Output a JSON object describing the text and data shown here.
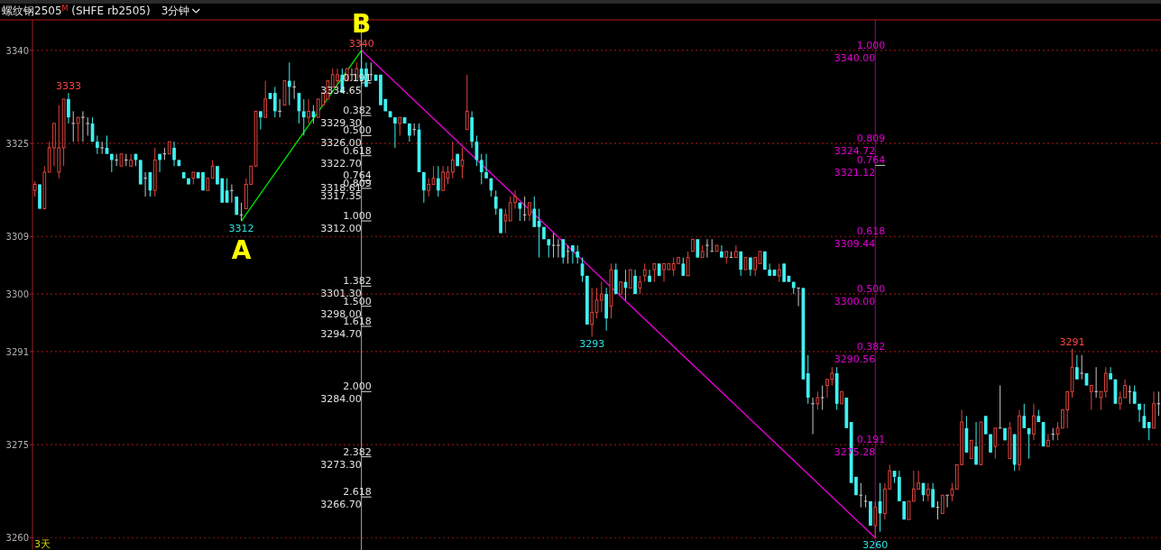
{
  "chart_data": {
    "type": "candlestick",
    "title": "螺纹钢2505$^{M}$ (SHFE rb2505)",
    "subtitle": "3分钟",
    "categories": [
      null,
      null,
      null,
      null,
      null,
      null,
      null,
      null,
      null,
      null,
      null,
      null,
      null,
      null,
      null,
      null,
      null,
      null,
      null,
      null,
      null,
      null,
      null,
      null,
      null,
      null,
      null,
      null,
      null,
      null,
      null,
      null,
      null,
      null,
      null,
      null,
      null,
      null,
      null,
      null,
      null,
      null,
      null,
      null,
      null,
      null,
      null,
      null,
      null,
      null,
      null,
      null,
      null,
      null,
      null,
      null,
      null,
      null,
      null,
      null,
      null,
      null,
      null,
      null,
      null,
      null,
      null,
      null,
      null,
      null,
      null,
      null,
      null,
      null,
      null,
      null,
      null,
      null,
      null,
      null,
      null,
      null,
      null,
      null,
      null,
      null,
      null,
      null,
      null,
      null,
      null,
      null,
      null,
      null,
      null,
      null,
      null,
      null,
      null,
      null,
      null,
      null,
      null,
      null,
      null,
      null,
      null,
      null,
      null,
      null,
      null,
      null,
      null,
      null,
      null,
      null,
      null,
      null,
      null,
      null,
      null,
      null,
      null,
      null,
      null,
      null,
      null,
      null,
      null,
      null,
      null,
      null,
      null,
      null,
      null,
      null,
      null,
      null,
      null,
      null,
      null,
      null,
      null,
      null,
      null,
      null,
      null,
      null,
      null,
      null,
      null,
      null,
      null,
      null,
      null,
      null,
      null,
      null,
      null,
      null,
      null,
      null,
      null,
      null,
      null,
      null,
      null,
      null,
      null,
      null,
      null,
      null,
      null,
      null,
      null,
      null,
      null,
      null,
      null,
      null,
      null,
      null,
      null,
      null,
      null,
      null,
      null,
      null,
      null,
      null,
      null,
      null,
      null,
      null,
      null,
      null,
      null,
      null,
      null,
      null,
      null,
      null,
      null,
      null,
      null,
      null,
      null,
      null,
      null,
      null,
      null,
      null,
      null,
      null,
      null,
      null,
      null,
      null,
      null,
      null,
      null,
      null,
      null,
      null,
      null,
      null,
      null,
      null,
      null,
      null,
      null,
      null,
      null,
      null,
      null
    ],
    "ohlc": [
      [
        3317,
        3318.5,
        3316,
        3318
      ],
      [
        3318,
        3318,
        3314,
        3314
      ],
      [
        3314,
        3321,
        3314,
        3320
      ],
      [
        3320,
        3325,
        3320,
        3324
      ],
      [
        3324,
        3328,
        3321,
        3328
      ],
      [
        3320,
        3331,
        3319,
        3324
      ],
      [
        3324,
        3332,
        3321,
        3332
      ],
      [
        3332,
        3333,
        3328,
        3329
      ],
      [
        3328,
        3330,
        3325,
        3328
      ],
      [
        3328,
        3329,
        3325,
        3329
      ],
      [
        3329,
        3330,
        3325,
        3329
      ],
      [
        3328,
        3329,
        3326,
        3328
      ],
      [
        3328,
        3329,
        3325,
        3325
      ],
      [
        3325,
        3326,
        3323,
        3324
      ],
      [
        3324,
        3325,
        3323,
        3324
      ],
      [
        3324,
        3326,
        3323,
        3323
      ],
      [
        3323,
        3323,
        3320,
        3322
      ],
      [
        3322,
        3323,
        3321,
        3322
      ],
      [
        3321,
        3323,
        3321,
        3323
      ],
      [
        3322,
        3323,
        3321,
        3322
      ],
      [
        3321,
        3323,
        3321,
        3322
      ],
      [
        3323,
        3323,
        3321,
        3322
      ],
      [
        3322,
        3322,
        3318,
        3318
      ],
      [
        3319,
        3320,
        3316,
        3319
      ],
      [
        3320,
        3320,
        3316,
        3317
      ],
      [
        3317,
        3324,
        3316,
        3322
      ],
      [
        3323,
        3323,
        3320,
        3322
      ],
      [
        3323,
        3324,
        3322,
        3323
      ],
      [
        3323,
        3325,
        3323,
        3325
      ],
      [
        3324,
        3325,
        3321,
        3322
      ],
      [
        3322,
        3322,
        3321,
        3321
      ],
      [
        3320,
        3320,
        3319,
        3319
      ],
      [
        3319,
        3319,
        3318,
        3318
      ],
      [
        3319,
        3320,
        3318,
        3320
      ],
      [
        3320,
        3320,
        3319,
        3319
      ],
      [
        3320,
        3320,
        3317,
        3317
      ],
      [
        3317,
        3319,
        3317,
        3319
      ],
      [
        3319,
        3322,
        3319,
        3321
      ],
      [
        3321,
        3321,
        3318,
        3318
      ],
      [
        3319,
        3319,
        3315,
        3315
      ],
      [
        3317,
        3319,
        3315,
        3315
      ],
      [
        3317,
        3318,
        3315,
        3317
      ],
      [
        3316,
        3316,
        3313,
        3313
      ],
      [
        3313,
        3315,
        3312,
        3313
      ],
      [
        3314,
        3319,
        3314,
        3318
      ],
      [
        3318,
        3321,
        3318,
        3321
      ],
      [
        3321,
        3330,
        3321,
        3330
      ],
      [
        3330,
        3330,
        3327,
        3329
      ],
      [
        3329,
        3335,
        3329,
        3332
      ],
      [
        3333,
        3333,
        3332,
        3332
      ],
      [
        3333,
        3334,
        3329,
        3330
      ],
      [
        3330,
        3332,
        3329,
        3330
      ],
      [
        3331,
        3335,
        3331,
        3335
      ],
      [
        3335,
        3338,
        3331,
        3334
      ],
      [
        3334,
        3335,
        3332,
        3334
      ],
      [
        3333,
        3333,
        3328,
        3330
      ],
      [
        3330,
        3332,
        3326,
        3329
      ],
      [
        3329,
        3332,
        3328,
        3330
      ],
      [
        3330,
        3331,
        3328,
        3329
      ],
      [
        3329,
        3332,
        3329,
        3332
      ],
      [
        3331,
        3333,
        3331,
        3333
      ],
      [
        3332,
        3335,
        3332,
        3335
      ],
      [
        3334,
        3337,
        3334,
        3336
      ],
      [
        3335,
        3337,
        3334,
        3336
      ],
      [
        3336,
        3337,
        3333,
        3333
      ],
      [
        3335,
        3337,
        3335,
        3337
      ],
      [
        3336,
        3337,
        3335,
        3336
      ],
      [
        3335,
        3338,
        3335,
        3337
      ],
      [
        3337,
        3340,
        3334,
        3335
      ],
      [
        3337,
        3338,
        3334,
        3334
      ],
      [
        3336,
        3338,
        3335,
        3336
      ],
      [
        3336,
        3336,
        3335,
        3335
      ],
      [
        3336,
        3336,
        3331,
        3331
      ],
      [
        3332,
        3332,
        3330,
        3330
      ],
      [
        3330,
        3330,
        3329,
        3329
      ],
      [
        3329,
        3329,
        3324,
        3328
      ],
      [
        3328,
        3329,
        3326,
        3329
      ],
      [
        3329,
        3329,
        3328,
        3328
      ],
      [
        3328,
        3328,
        3325,
        3326
      ],
      [
        3327,
        3328,
        3326,
        3327
      ],
      [
        3327,
        3328,
        3320,
        3320
      ],
      [
        3320,
        3320,
        3315,
        3317
      ],
      [
        3317,
        3319,
        3316,
        3318
      ],
      [
        3318,
        3321,
        3318,
        3319
      ],
      [
        3319,
        3321,
        3316,
        3317
      ],
      [
        3317,
        3321,
        3317,
        3320
      ],
      [
        3319,
        3321,
        3318,
        3320
      ],
      [
        3320,
        3325,
        3319,
        3322
      ],
      [
        3323,
        3323,
        3321,
        3321
      ],
      [
        3321,
        3324,
        3319,
        3322
      ],
      [
        3327,
        3336,
        3327,
        3330
      ],
      [
        3329,
        3330,
        3324,
        3325
      ],
      [
        3325,
        3326,
        3321,
        3322
      ],
      [
        3322,
        3323,
        3318,
        3320
      ],
      [
        3320,
        3323,
        3319,
        3319
      ],
      [
        3319,
        3319,
        3316,
        3317
      ],
      [
        3316,
        3317,
        3313,
        3314
      ],
      [
        3314,
        3314,
        3310,
        3310
      ],
      [
        3312,
        3314,
        3310,
        3313
      ],
      [
        3312,
        3316,
        3312,
        3315
      ],
      [
        3315,
        3317,
        3314,
        3316
      ],
      [
        3315,
        3315,
        3312,
        3314
      ],
      [
        3313,
        3316,
        3312,
        3313
      ],
      [
        3313,
        3315,
        3312,
        3315
      ],
      [
        3314,
        3316,
        3311,
        3311
      ],
      [
        3312,
        3314,
        3306,
        3311
      ],
      [
        3311,
        3311,
        3309,
        3309
      ],
      [
        3309,
        3309,
        3306,
        3308
      ],
      [
        3308,
        3310,
        3306,
        3308
      ],
      [
        3308,
        3309,
        3306,
        3308
      ],
      [
        3309,
        3309,
        3305,
        3306
      ],
      [
        3307,
        3308,
        3305,
        3307
      ],
      [
        3308,
        3308,
        3305,
        3307
      ],
      [
        3307,
        3308,
        3305,
        3306
      ],
      [
        3305,
        3306,
        3302,
        3303
      ],
      [
        3303,
        3303,
        3295,
        3295
      ],
      [
        3295,
        3301,
        3293,
        3297
      ],
      [
        3297,
        3301,
        3296,
        3299
      ],
      [
        3299,
        3302,
        3297,
        3300
      ],
      [
        3300,
        3301,
        3294,
        3296
      ],
      [
        3298,
        3305,
        3296,
        3304
      ],
      [
        3304,
        3305,
        3300,
        3300
      ],
      [
        3300,
        3302,
        3300,
        3302
      ],
      [
        3302,
        3304,
        3299,
        3301
      ],
      [
        3301,
        3304,
        3301,
        3304
      ],
      [
        3303,
        3304,
        3300,
        3300
      ],
      [
        3301,
        3303,
        3300,
        3302
      ],
      [
        3303,
        3305,
        3302,
        3304
      ],
      [
        3303,
        3304,
        3302,
        3302
      ],
      [
        3304,
        3305,
        3302,
        3305
      ],
      [
        3305,
        3305,
        3303,
        3303
      ],
      [
        3304,
        3305,
        3302,
        3305
      ],
      [
        3304,
        3305,
        3304,
        3305
      ],
      [
        3304,
        3306,
        3303,
        3305
      ],
      [
        3305,
        3306,
        3305,
        3306
      ],
      [
        3305,
        3306,
        3303,
        3303
      ],
      [
        3303,
        3307,
        3303,
        3306
      ],
      [
        3307,
        3309,
        3307,
        3309
      ],
      [
        3309,
        3309,
        3306,
        3306
      ],
      [
        3306,
        3308,
        3306,
        3307
      ],
      [
        3308,
        3309,
        3306,
        3308
      ],
      [
        3307,
        3309,
        3307,
        3307
      ],
      [
        3307,
        3308,
        3307,
        3308
      ],
      [
        3307,
        3308,
        3306,
        3306
      ],
      [
        3306,
        3307,
        3305,
        3307
      ],
      [
        3306,
        3307,
        3306,
        3306
      ],
      [
        3306,
        3308,
        3306,
        3307
      ],
      [
        3307,
        3307,
        3303,
        3304
      ],
      [
        3304,
        3306,
        3304,
        3306
      ],
      [
        3306,
        3306,
        3303,
        3304
      ],
      [
        3304,
        3306,
        3303,
        3306
      ],
      [
        3305,
        3307,
        3305,
        3307
      ],
      [
        3307,
        3307,
        3304,
        3304
      ],
      [
        3304,
        3305,
        3303,
        3303
      ],
      [
        3304,
        3304,
        3303,
        3303
      ],
      [
        3303,
        3305,
        3302,
        3304
      ],
      [
        3305,
        3305,
        3302,
        3302
      ],
      [
        3303,
        3303,
        3302,
        3302
      ],
      [
        3302,
        3302,
        3300,
        3301
      ],
      [
        3301,
        3301,
        3298,
        3301
      ],
      [
        3301,
        3301,
        3286,
        3286
      ],
      [
        3287,
        3290,
        3282,
        3283
      ],
      [
        3282,
        3283,
        3277,
        3282
      ],
      [
        3282,
        3284,
        3281,
        3283
      ],
      [
        3283,
        3285,
        3281,
        3283
      ],
      [
        3285,
        3286,
        3283,
        3286
      ],
      [
        3286,
        3288,
        3285,
        3287
      ],
      [
        3287,
        3288,
        3281,
        3282
      ],
      [
        3282,
        3284,
        3282,
        3284
      ],
      [
        3283,
        3283,
        3278,
        3278
      ],
      [
        3279,
        3279,
        3269,
        3269
      ],
      [
        3270,
        3270,
        3267,
        3267
      ],
      [
        3267,
        3269,
        3265,
        3267
      ],
      [
        3266,
        3267,
        3265,
        3266
      ],
      [
        3266,
        3266,
        3262,
        3262
      ],
      [
        3262,
        3266,
        3260,
        3265
      ],
      [
        3266,
        3269,
        3261,
        3264
      ],
      [
        3264,
        3269,
        3263,
        3268
      ],
      [
        3268,
        3272,
        3268,
        3271
      ],
      [
        3271,
        3271,
        3269,
        3270
      ],
      [
        3270,
        3271,
        3266,
        3266
      ],
      [
        3266,
        3266,
        3263,
        3263
      ],
      [
        3263,
        3266,
        3263,
        3266
      ],
      [
        3266,
        3271,
        3266,
        3268
      ],
      [
        3268,
        3271,
        3268,
        3269
      ],
      [
        3269,
        3269,
        3266,
        3267
      ],
      [
        3267,
        3269,
        3266,
        3268
      ],
      [
        3268,
        3269,
        3265,
        3265
      ],
      [
        3265,
        3266,
        3263,
        3265
      ],
      [
        3264,
        3267,
        3264,
        3267
      ],
      [
        3267,
        3267,
        3265,
        3267
      ],
      [
        3267,
        3269,
        3266,
        3268
      ],
      [
        3268,
        3272,
        3268,
        3272
      ],
      [
        3272,
        3281,
        3272,
        3279
      ],
      [
        3278,
        3280,
        3274,
        3274
      ],
      [
        3273,
        3276,
        3273,
        3276
      ],
      [
        3275,
        3279,
        3272,
        3272
      ],
      [
        3272,
        3279,
        3272,
        3279
      ],
      [
        3280,
        3280,
        3277,
        3277
      ],
      [
        3277,
        3277,
        3274,
        3274
      ],
      [
        3275,
        3278,
        3273,
        3278
      ],
      [
        3278,
        3285,
        3278,
        3278
      ],
      [
        3278,
        3278,
        3276,
        3276
      ],
      [
        3273,
        3279,
        3273,
        3278
      ],
      [
        3277,
        3277,
        3271,
        3272
      ],
      [
        3272,
        3281,
        3271,
        3280
      ],
      [
        3280,
        3282,
        3278,
        3278
      ],
      [
        3278,
        3278,
        3273,
        3277
      ],
      [
        3277,
        3282,
        3276,
        3280
      ],
      [
        3280,
        3281,
        3279,
        3279
      ],
      [
        3279,
        3279,
        3275,
        3275
      ],
      [
        3275,
        3277,
        3275,
        3276
      ],
      [
        3277,
        3278,
        3276,
        3277
      ],
      [
        3277,
        3279,
        3276,
        3278
      ],
      [
        3278,
        3281,
        3278,
        3281
      ],
      [
        3281,
        3284,
        3278,
        3284
      ],
      [
        3284,
        3291,
        3283,
        3288
      ],
      [
        3288,
        3290,
        3286,
        3286
      ],
      [
        3287,
        3290,
        3286,
        3287
      ],
      [
        3287,
        3287,
        3285,
        3285
      ],
      [
        3284,
        3285,
        3281,
        3285
      ],
      [
        3284,
        3288,
        3283,
        3284
      ],
      [
        3283,
        3284,
        3281,
        3284
      ],
      [
        3284,
        3288,
        3283,
        3287
      ],
      [
        3287,
        3288,
        3286,
        3286
      ],
      [
        3286,
        3286,
        3282,
        3282
      ],
      [
        3282,
        3284,
        3281,
        3283
      ],
      [
        3283,
        3286,
        3283,
        3285
      ],
      [
        3284,
        3285,
        3282,
        3284
      ],
      [
        3284,
        3285,
        3282,
        3282
      ],
      [
        3282,
        3282,
        3279,
        3281
      ],
      [
        3280,
        3282,
        3278,
        3278
      ],
      [
        3279,
        3279,
        3276,
        3278
      ],
      [
        3278,
        3284,
        3278,
        3282
      ],
      [
        3282,
        3284,
        3280,
        3282
      ]
    ],
    "colors": [
      "#e0443c",
      "#40f0f0",
      "#e0443c",
      "#e0443c",
      "#e0443c",
      "#e0443c",
      "#e0443c",
      "#40f0f0",
      "#c8c8c8",
      "#e0443c",
      "#c8c8c8",
      "#c8c8c8",
      "#40f0f0",
      "#40f0f0",
      "#c8c8c8",
      "#40f0f0",
      "#40f0f0",
      "#c8c8c8",
      "#e0443c",
      "#c8c8c8",
      "#e0443c",
      "#40f0f0",
      "#40f0f0",
      "#c8c8c8",
      "#40f0f0",
      "#e0443c",
      "#40f0f0",
      "#c8c8c8",
      "#e0443c",
      "#40f0f0",
      "#40f0f0",
      "#40f0f0",
      "#40f0f0",
      "#e0443c",
      "#40f0f0",
      "#40f0f0",
      "#e0443c",
      "#e0443c",
      "#40f0f0",
      "#40f0f0",
      "#40f0f0",
      "#c8c8c8",
      "#40f0f0",
      "#c8c8c8",
      "#e0443c",
      "#e0443c",
      "#e0443c",
      "#40f0f0",
      "#e0443c",
      "#40f0f0",
      "#40f0f0",
      "#c8c8c8",
      "#e0443c",
      "#40f0f0",
      "#c8c8c8",
      "#40f0f0",
      "#40f0f0",
      "#e0443c",
      "#40f0f0",
      "#e0443c",
      "#e0443c",
      "#e0443c",
      "#e0443c",
      "#e0443c",
      "#40f0f0",
      "#e0443c",
      "#c8c8c8",
      "#e0443c",
      "#40f0f0",
      "#40f0f0",
      "#c8c8c8",
      "#40f0f0",
      "#40f0f0",
      "#40f0f0",
      "#40f0f0",
      "#40f0f0",
      "#e0443c",
      "#40f0f0",
      "#40f0f0",
      "#c8c8c8",
      "#40f0f0",
      "#40f0f0",
      "#e0443c",
      "#e0443c",
      "#40f0f0",
      "#e0443c",
      "#e0443c",
      "#e0443c",
      "#40f0f0",
      "#e0443c",
      "#e0443c",
      "#40f0f0",
      "#40f0f0",
      "#40f0f0",
      "#40f0f0",
      "#40f0f0",
      "#40f0f0",
      "#40f0f0",
      "#e0443c",
      "#e0443c",
      "#e0443c",
      "#40f0f0",
      "#c8c8c8",
      "#e0443c",
      "#40f0f0",
      "#40f0f0",
      "#40f0f0",
      "#40f0f0",
      "#c8c8c8",
      "#c8c8c8",
      "#40f0f0",
      "#c8c8c8",
      "#40f0f0",
      "#40f0f0",
      "#40f0f0",
      "#40f0f0",
      "#e0443c",
      "#e0443c",
      "#e0443c",
      "#40f0f0",
      "#e0443c",
      "#40f0f0",
      "#e0443c",
      "#40f0f0",
      "#e0443c",
      "#40f0f0",
      "#e0443c",
      "#e0443c",
      "#40f0f0",
      "#e0443c",
      "#40f0f0",
      "#e0443c",
      "#e0443c",
      "#e0443c",
      "#e0443c",
      "#40f0f0",
      "#e0443c",
      "#e0443c",
      "#40f0f0",
      "#e0443c",
      "#c8c8c8",
      "#c8c8c8",
      "#e0443c",
      "#40f0f0",
      "#e0443c",
      "#c8c8c8",
      "#e0443c",
      "#40f0f0",
      "#e0443c",
      "#40f0f0",
      "#e0443c",
      "#e0443c",
      "#40f0f0",
      "#40f0f0",
      "#40f0f0",
      "#e0443c",
      "#40f0f0",
      "#40f0f0",
      "#40f0f0",
      "#c8c8c8",
      "#40f0f0",
      "#40f0f0",
      "#c8c8c8",
      "#e0443c",
      "#c8c8c8",
      "#e0443c",
      "#e0443c",
      "#40f0f0",
      "#e0443c",
      "#40f0f0",
      "#40f0f0",
      "#40f0f0",
      "#c8c8c8",
      "#c8c8c8",
      "#40f0f0",
      "#e0443c",
      "#40f0f0",
      "#e0443c",
      "#e0443c",
      "#40f0f0",
      "#40f0f0",
      "#40f0f0",
      "#e0443c",
      "#e0443c",
      "#e0443c",
      "#40f0f0",
      "#e0443c",
      "#40f0f0",
      "#c8c8c8",
      "#e0443c",
      "#c8c8c8",
      "#e0443c",
      "#e0443c",
      "#e0443c",
      "#40f0f0",
      "#e0443c",
      "#40f0f0",
      "#e0443c",
      "#40f0f0",
      "#40f0f0",
      "#e0443c",
      "#c8c8c8",
      "#40f0f0",
      "#e0443c",
      "#40f0f0",
      "#e0443c",
      "#40f0f0",
      "#40f0f0",
      "#e0443c",
      "#40f0f0",
      "#40f0f0",
      "#e0443c",
      "#c8c8c8",
      "#e0443c",
      "#e0443c",
      "#e0443c",
      "#e0443c",
      "#40f0f0",
      "#c8c8c8",
      "#40f0f0",
      "#e0443c",
      "#c8c8c8",
      "#e0443c",
      "#e0443c",
      "#40f0f0",
      "#40f0f0",
      "#e0443c",
      "#e0443c",
      "#c8c8c8",
      "#40f0f0",
      "#40f0f0",
      "#40f0f0",
      "#40f0f0",
      "#e0443c",
      "#c8c8c8"
    ],
    "value_labels": [
      null,
      null,
      null,
      null,
      null,
      null,
      null,
      "3333",
      null,
      null,
      null,
      null,
      null,
      null,
      null,
      null,
      null,
      null,
      null,
      null,
      null,
      null,
      null,
      null,
      null,
      null,
      null,
      null,
      null,
      null,
      null,
      null,
      null,
      null,
      null,
      null,
      null,
      null,
      null,
      null,
      null,
      null,
      null,
      "3312",
      null,
      null,
      null,
      null,
      null,
      null,
      null,
      null,
      null,
      null,
      null,
      null,
      null,
      null,
      null,
      null,
      null,
      null,
      null,
      null,
      null,
      null,
      null,
      null,
      "3340",
      null,
      null,
      null,
      null,
      null,
      null,
      null,
      null,
      null,
      null,
      null,
      null,
      null,
      null,
      null,
      null,
      null,
      null,
      null,
      null,
      null,
      null,
      null,
      null,
      null,
      null,
      null,
      null,
      null,
      null,
      null,
      null,
      null,
      null,
      null,
      null,
      null,
      null,
      null,
      null,
      null,
      null,
      null,
      null,
      null,
      null,
      null,
      "3293",
      null,
      null,
      null,
      null,
      null,
      null,
      null,
      null,
      null,
      null,
      null,
      null,
      null,
      null,
      null,
      null,
      null,
      null,
      null,
      null,
      null,
      null,
      null,
      null,
      null,
      null,
      null,
      null,
      null,
      null,
      null,
      null,
      null,
      null,
      null,
      null,
      null,
      null,
      null,
      null,
      null,
      null,
      null,
      null,
      null,
      null,
      null,
      null,
      null,
      null,
      null,
      null,
      null,
      null,
      null,
      null,
      null,
      null,
      "3260",
      null,
      null,
      null,
      null,
      null,
      null,
      null,
      null,
      null,
      null,
      null,
      null,
      null,
      null,
      null,
      null,
      null,
      null,
      null,
      null,
      null,
      null,
      null,
      null,
      null,
      null,
      null,
      null,
      null,
      null,
      null,
      null,
      null,
      null,
      null,
      null,
      null,
      null,
      null,
      null,
      "3291",
      null,
      null,
      null,
      null,
      null,
      null,
      null,
      null,
      null,
      null,
      null,
      null,
      null,
      null,
      null,
      null,
      null,
      null
    ],
    "series": [
      {
        "type": "line",
        "color": "#00e000",
        "values": [
          null,
          null,
          null,
          null,
          null,
          null,
          null,
          null,
          null,
          null,
          null,
          null,
          null,
          null,
          null,
          null,
          null,
          null,
          null,
          null,
          null,
          null,
          null,
          null,
          null,
          null,
          null,
          null,
          null,
          null,
          null,
          null,
          null,
          null,
          null,
          null,
          null,
          null,
          null,
          null,
          null,
          null,
          null,
          3312,
          null,
          null,
          null,
          null,
          null,
          null,
          null,
          null,
          null,
          null,
          null,
          null,
          null,
          null,
          null,
          null,
          null,
          null,
          null,
          null,
          null,
          null,
          null,
          null,
          3340,
          null,
          null,
          null,
          null,
          null,
          null,
          null,
          null,
          null,
          null,
          null,
          null,
          null,
          null,
          null,
          null,
          null,
          null,
          null,
          null,
          null,
          null,
          null,
          null,
          null,
          null,
          null,
          null,
          null,
          null,
          null,
          null,
          null,
          null,
          null,
          null,
          null,
          null,
          null,
          null,
          null,
          null,
          null,
          null,
          null,
          null,
          null,
          null,
          null,
          null,
          null,
          null,
          null,
          null,
          null,
          null,
          null,
          null,
          null,
          null,
          null,
          null,
          null,
          null,
          null,
          null,
          null,
          null,
          null,
          null,
          null,
          null,
          null,
          null,
          null,
          null,
          null,
          null,
          null,
          null,
          null,
          null,
          null,
          null,
          null,
          null,
          null,
          null,
          null,
          null,
          null,
          null,
          null,
          null,
          null,
          null,
          null,
          null,
          null,
          null,
          null,
          null,
          null,
          null,
          null,
          null,
          null,
          null,
          null,
          null,
          null,
          null,
          null,
          null,
          null,
          null,
          null,
          null,
          null,
          null,
          null,
          null,
          null,
          null,
          null,
          null,
          null,
          null,
          null,
          null,
          null,
          null,
          null,
          null,
          null,
          null,
          null,
          null,
          null,
          null,
          null,
          null,
          null,
          null,
          null,
          null,
          null,
          null,
          null,
          null,
          null,
          null,
          null,
          null,
          null,
          null,
          null,
          null,
          null,
          null,
          null,
          null,
          null,
          null,
          null,
          null
        ]
      },
      {
        "type": "line",
        "color": "#e000d0",
        "values": [
          null,
          null,
          null,
          null,
          null,
          null,
          null,
          null,
          null,
          null,
          null,
          null,
          null,
          null,
          null,
          null,
          null,
          null,
          null,
          null,
          null,
          null,
          null,
          null,
          null,
          null,
          null,
          null,
          null,
          null,
          null,
          null,
          null,
          null,
          null,
          null,
          null,
          null,
          null,
          null,
          null,
          null,
          null,
          null,
          null,
          null,
          null,
          null,
          null,
          null,
          null,
          null,
          null,
          null,
          null,
          null,
          null,
          null,
          null,
          null,
          null,
          null,
          null,
          null,
          null,
          null,
          null,
          null,
          3340,
          null,
          null,
          null,
          null,
          null,
          null,
          null,
          null,
          null,
          null,
          null,
          null,
          null,
          null,
          null,
          null,
          null,
          null,
          null,
          null,
          null,
          null,
          null,
          null,
          null,
          null,
          null,
          null,
          null,
          null,
          null,
          null,
          null,
          null,
          null,
          null,
          null,
          null,
          null,
          null,
          null,
          null,
          null,
          null,
          null,
          null,
          null,
          null,
          null,
          null,
          null,
          null,
          null,
          null,
          null,
          null,
          null,
          null,
          null,
          null,
          null,
          null,
          null,
          null,
          null,
          null,
          null,
          null,
          null,
          null,
          null,
          null,
          null,
          null,
          null,
          null,
          null,
          null,
          null,
          null,
          null,
          null,
          null,
          null,
          null,
          null,
          null,
          null,
          null,
          null,
          null,
          null,
          null,
          null,
          null,
          null,
          null,
          null,
          null,
          null,
          null,
          null,
          null,
          null,
          null,
          null,
          3260,
          null,
          null,
          null,
          null,
          null,
          null,
          null,
          null,
          null,
          null,
          null,
          null,
          null,
          null,
          null,
          null,
          null,
          null,
          null,
          null,
          null,
          null,
          null,
          null,
          null,
          null,
          null,
          null,
          null,
          null,
          null,
          null,
          null,
          null,
          null,
          null,
          null,
          null,
          null,
          null,
          null,
          null,
          null,
          null,
          null,
          null,
          null,
          null,
          null,
          null,
          null,
          null,
          null,
          null,
          null,
          null,
          null,
          null,
          null
        ]
      }
    ],
    "ylim": [
      3258,
      3345
    ],
    "yticks": [
      {
        "value": 3340,
        "label": "3340"
      },
      {
        "value": 3324.72,
        "label": "3325"
      },
      {
        "value": 3309.44,
        "label": "3309"
      },
      {
        "value": 3300,
        "label": "3300"
      },
      {
        "value": 3290.56,
        "label": "3291"
      },
      {
        "value": 3275.28,
        "label": "3275"
      },
      {
        "value": 3260,
        "label": "3260"
      }
    ],
    "tick_labels": "y",
    "grid": "y",
    "ref_lines": [
      {
        "axis": "y",
        "value": 3334.65,
        "label": "0.191\n3334.65",
        "color": "#e0e0e0"
      },
      {
        "axis": "y",
        "value": 3329.3,
        "label": "0.382\n3329.30",
        "color": "#e0e0e0"
      },
      {
        "axis": "y",
        "value": 3326,
        "label": "0.500\n3326.00",
        "color": "#e0e0e0"
      },
      {
        "axis": "y",
        "value": 3322.7,
        "label": "0.618\n3322.70",
        "color": "#e0e0e0"
      },
      {
        "axis": "y",
        "value": 3318.61,
        "label": "0.764\n3318.61",
        "color": "#e0e0e0"
      },
      {
        "axis": "y",
        "value": 3317.35,
        "label": "0.809\n3317.35",
        "color": "#e0e0e0"
      },
      {
        "axis": "y",
        "value": 3312,
        "label": "1.000\n3312.00",
        "color": "#e0e0e0"
      },
      {
        "axis": "y",
        "value": 3301.3,
        "label": "1.382\n3301.30",
        "color": "#e0e0e0"
      },
      {
        "axis": "y",
        "value": 3298,
        "label": "1.500\n3298.00",
        "color": "#e0e0e0"
      },
      {
        "axis": "y",
        "value": 3294.7,
        "label": "1.618\n3294.70",
        "color": "#e0e0e0"
      },
      {
        "axis": "y",
        "value": 3284,
        "label": "2.000\n3284.00",
        "color": "#e0e0e0"
      },
      {
        "axis": "y",
        "value": 3273.3,
        "label": "2.382\n3273.30",
        "color": "#e0e0e0"
      },
      {
        "axis": "y",
        "value": 3266.7,
        "label": "2.618\n3266.70",
        "color": "#e0e0e0"
      },
      {
        "axis": "y",
        "value": 3340,
        "label": "1.000\n3340.00",
        "color": "#7a1414",
        "line_style": "dotted"
      },
      {
        "axis": "y",
        "value": 3324.72,
        "label": "0.809\n3324.72",
        "color": "#7a1414",
        "line_style": "dotted"
      },
      {
        "axis": "y",
        "value": 3321.12,
        "label": "0.764\n3321.12",
        "color": "#c8c8c8"
      },
      {
        "axis": "y",
        "value": 3309.44,
        "label": "0.618\n3309.44",
        "color": "#7a1414",
        "line_style": "dotted"
      },
      {
        "axis": "y",
        "value": 3300,
        "label": "0.500\n3300.00",
        "color": "#7a1414",
        "line_style": "dotted"
      },
      {
        "axis": "y",
        "value": 3290.56,
        "label": "0.382\n3290.56",
        "color": "#7a1414",
        "line_style": "dotted"
      },
      {
        "axis": "y",
        "value": 3275.28,
        "label": "0.191\n3275.28",
        "color": "#7a1414",
        "line_style": "dotted"
      }
    ],
    "annotations": [
      "A",
      "B",
      "3天"
    ]
  }
}
